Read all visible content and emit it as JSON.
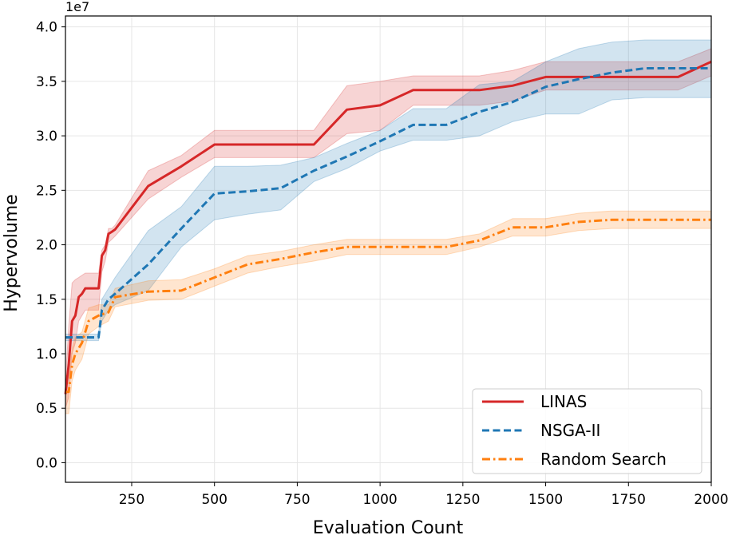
{
  "chart_data": {
    "type": "line",
    "xlabel": "Evaluation Count",
    "ylabel": "Hypervolume",
    "y_offset_label": "1e7",
    "xlim": [
      50,
      2000
    ],
    "ylim": [
      -0.18,
      4.1
    ],
    "x_ticks": [
      250,
      500,
      750,
      1000,
      1250,
      1500,
      1750,
      2000
    ],
    "y_ticks": [
      0.0,
      0.5,
      1.0,
      1.5,
      2.0,
      2.5,
      3.0,
      3.5,
      4.0
    ],
    "x_tick_labels": [
      "250",
      "500",
      "750",
      "1000",
      "1250",
      "1500",
      "1750",
      "2000"
    ],
    "y_tick_labels": [
      "0.0",
      "0.5",
      "1.0",
      "1.5",
      "2.0",
      "2.5",
      "3.0",
      "3.5",
      "4.0"
    ],
    "grid": true,
    "legend_position": "lower-right",
    "series": [
      {
        "name": "LINAS",
        "color": "#d62728",
        "dash": "solid",
        "x": [
          50,
          60,
          70,
          80,
          90,
          100,
          110,
          120,
          150,
          160,
          170,
          180,
          190,
          200,
          300,
          400,
          500,
          600,
          700,
          800,
          900,
          1000,
          1100,
          1200,
          1300,
          1400,
          1500,
          1600,
          1700,
          1800,
          1900,
          2000
        ],
        "y": [
          0.63,
          0.9,
          1.3,
          1.35,
          1.52,
          1.55,
          1.6,
          1.6,
          1.6,
          1.9,
          1.95,
          2.1,
          2.12,
          2.14,
          2.54,
          2.72,
          2.92,
          2.92,
          2.92,
          2.92,
          3.24,
          3.28,
          3.42,
          3.42,
          3.42,
          3.46,
          3.54,
          3.54,
          3.54,
          3.54,
          3.54,
          3.68
        ],
        "upper": [
          0.75,
          1.25,
          1.65,
          1.68,
          1.7,
          1.72,
          1.74,
          1.74,
          1.74,
          1.95,
          2.0,
          2.15,
          2.15,
          2.18,
          2.68,
          2.82,
          3.05,
          3.05,
          3.05,
          3.05,
          3.46,
          3.5,
          3.55,
          3.55,
          3.55,
          3.6,
          3.68,
          3.68,
          3.68,
          3.68,
          3.68,
          3.8
        ],
        "lower": [
          0.5,
          0.6,
          1.0,
          1.1,
          1.3,
          1.35,
          1.4,
          1.4,
          1.4,
          1.75,
          1.85,
          2.02,
          2.05,
          2.08,
          2.42,
          2.62,
          2.8,
          2.8,
          2.8,
          2.8,
          3.02,
          3.05,
          3.28,
          3.28,
          3.28,
          3.32,
          3.42,
          3.42,
          3.42,
          3.42,
          3.42,
          3.55
        ]
      },
      {
        "name": "NSGA-II",
        "color": "#1f77b4",
        "dash": "dashed",
        "x": [
          50,
          100,
          150,
          160,
          180,
          200,
          300,
          400,
          500,
          600,
          700,
          800,
          900,
          1000,
          1100,
          1200,
          1300,
          1400,
          1500,
          1600,
          1700,
          1800,
          1900,
          2000
        ],
        "y": [
          1.15,
          1.15,
          1.15,
          1.4,
          1.5,
          1.55,
          1.82,
          2.15,
          2.47,
          2.49,
          2.52,
          2.68,
          2.81,
          2.95,
          3.1,
          3.1,
          3.22,
          3.31,
          3.45,
          3.52,
          3.58,
          3.62,
          3.62,
          3.62
        ],
        "upper": [
          1.18,
          1.18,
          1.18,
          1.5,
          1.6,
          1.7,
          2.13,
          2.35,
          2.72,
          2.72,
          2.73,
          2.8,
          2.93,
          3.05,
          3.25,
          3.25,
          3.47,
          3.5,
          3.68,
          3.8,
          3.86,
          3.88,
          3.88,
          3.88
        ],
        "lower": [
          1.12,
          1.12,
          1.12,
          1.3,
          1.4,
          1.45,
          1.58,
          1.98,
          2.23,
          2.28,
          2.32,
          2.58,
          2.7,
          2.86,
          2.96,
          2.96,
          3.0,
          3.13,
          3.2,
          3.2,
          3.33,
          3.35,
          3.35,
          3.35
        ]
      },
      {
        "name": "Random Search",
        "color": "#ff7f0e",
        "dash": "dashdot",
        "x": [
          50,
          60,
          70,
          80,
          100,
          120,
          150,
          180,
          200,
          300,
          400,
          500,
          600,
          700,
          800,
          900,
          1000,
          1100,
          1200,
          1300,
          1400,
          1500,
          1600,
          1700,
          1800,
          1900,
          2000
        ],
        "y": [
          0.65,
          0.65,
          0.9,
          1.0,
          1.1,
          1.3,
          1.35,
          1.38,
          1.52,
          1.57,
          1.58,
          1.7,
          1.82,
          1.87,
          1.93,
          1.98,
          1.98,
          1.98,
          1.98,
          2.04,
          2.16,
          2.16,
          2.21,
          2.23,
          2.23,
          2.23,
          2.23
        ],
        "upper": [
          0.8,
          0.8,
          1.05,
          1.15,
          1.2,
          1.42,
          1.45,
          1.45,
          1.6,
          1.67,
          1.68,
          1.78,
          1.9,
          1.94,
          2.0,
          2.05,
          2.05,
          2.05,
          2.05,
          2.1,
          2.24,
          2.24,
          2.29,
          2.31,
          2.31,
          2.31,
          2.31
        ],
        "lower": [
          0.45,
          0.45,
          0.75,
          0.85,
          0.95,
          1.18,
          1.25,
          1.3,
          1.43,
          1.49,
          1.5,
          1.62,
          1.74,
          1.8,
          1.85,
          1.91,
          1.91,
          1.91,
          1.91,
          1.98,
          2.08,
          2.08,
          2.13,
          2.15,
          2.15,
          2.15,
          2.15
        ]
      }
    ]
  }
}
